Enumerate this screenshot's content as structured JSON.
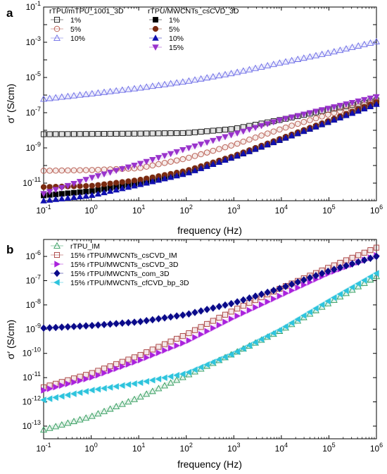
{
  "chart_data": [
    {
      "panel": "a",
      "type": "scatter",
      "xlabel": "frequency (Hz)",
      "ylabel": "σ′ (S/cm)",
      "x_scale": "log",
      "y_scale": "log",
      "xlim": [
        0.1,
        1000000
      ],
      "ylim": [
        1e-12,
        0.1
      ],
      "x_ticks": [
        {
          "v": 0.1,
          "base": "10",
          "exp": "-1"
        },
        {
          "v": 1,
          "base": "10",
          "exp": "0"
        },
        {
          "v": 10,
          "base": "10",
          "exp": "1"
        },
        {
          "v": 100,
          "base": "10",
          "exp": "2"
        },
        {
          "v": 1000,
          "base": "10",
          "exp": "3"
        },
        {
          "v": 10000,
          "base": "10",
          "exp": "4"
        },
        {
          "v": 100000,
          "base": "10",
          "exp": "5"
        },
        {
          "v": 1000000,
          "base": "10",
          "exp": "6"
        }
      ],
      "y_ticks": [
        {
          "v": 1e-11,
          "base": "10",
          "exp": "-11"
        },
        {
          "v": 1e-09,
          "base": "10",
          "exp": "-9"
        },
        {
          "v": 1e-07,
          "base": "10",
          "exp": "-7"
        },
        {
          "v": 1e-05,
          "base": "10",
          "exp": "-5"
        },
        {
          "v": 0.001,
          "base": "10",
          "exp": "-3"
        },
        {
          "v": 0.1,
          "base": "10",
          "exp": "-1"
        }
      ],
      "legend_groups": [
        {
          "title": "rTPU/mTPU_1001_3D",
          "entries": [
            "1%",
            "5%",
            "10%"
          ]
        },
        {
          "title": "rTPU/MWCNTs_csCVD_3D",
          "entries": [
            "1%",
            "5%",
            "10%",
            "15%"
          ]
        }
      ],
      "series": [
        {
          "name": "1%",
          "marker": "square-open",
          "color": "#111111",
          "points": [
            [
              0.1,
              6e-09
            ],
            [
              1,
              6.2e-09
            ],
            [
              10,
              6.5e-09
            ],
            [
              100,
              7e-09
            ],
            [
              1000,
              1.2e-08
            ],
            [
              10000,
              4e-08
            ],
            [
              100000,
              1.5e-07
            ],
            [
              1000000,
              5e-07
            ]
          ]
        },
        {
          "name": "5%",
          "marker": "circle-open",
          "color": "#b5574b",
          "points": [
            [
              0.1,
              5e-11
            ],
            [
              1,
              5.5e-11
            ],
            [
              10,
              7e-11
            ],
            [
              100,
              2.5e-10
            ],
            [
              1000,
              1.5e-09
            ],
            [
              10000,
              1.2e-08
            ],
            [
              100000,
              8e-08
            ],
            [
              1000000,
              4.5e-07
            ]
          ]
        },
        {
          "name": "10%",
          "marker": "triangle-open",
          "color": "#6a6ae6",
          "points": [
            [
              0.1,
              6e-07
            ],
            [
              1,
              1.2e-06
            ],
            [
              10,
              2.5e-06
            ],
            [
              100,
              6e-06
            ],
            [
              1000,
              1.8e-05
            ],
            [
              10000,
              7e-05
            ],
            [
              100000,
              0.00025
            ],
            [
              1000000,
              0.0011
            ]
          ]
        },
        {
          "name": "1%",
          "marker": "square-filled",
          "color": "#000000",
          "points": [
            [
              0.1,
              2e-12
            ],
            [
              1,
              3.5e-12
            ],
            [
              10,
              1e-11
            ],
            [
              100,
              4e-11
            ],
            [
              1000,
              3e-10
            ],
            [
              10000,
              3e-09
            ],
            [
              100000,
              3e-08
            ],
            [
              1000000,
              3.5e-07
            ]
          ]
        },
        {
          "name": "5%",
          "marker": "circle-filled",
          "color": "#7a2a10",
          "points": [
            [
              0.1,
              6e-12
            ],
            [
              1,
              7e-12
            ],
            [
              10,
              1.5e-11
            ],
            [
              100,
              5e-11
            ],
            [
              1000,
              3.5e-10
            ],
            [
              10000,
              3.5e-09
            ],
            [
              100000,
              3.5e-08
            ],
            [
              1000000,
              4e-07
            ]
          ]
        },
        {
          "name": "10%",
          "marker": "triangle-up-filled",
          "color": "#0f0fb0",
          "points": [
            [
              0.1,
              1e-12
            ],
            [
              1,
              2e-12
            ],
            [
              10,
              8e-12
            ],
            [
              100,
              3.5e-11
            ],
            [
              1000,
              3e-10
            ],
            [
              10000,
              3e-09
            ],
            [
              100000,
              3e-08
            ],
            [
              1000000,
              3e-07
            ]
          ]
        },
        {
          "name": "15%",
          "marker": "triangle-down-filled",
          "color": "#9933cc",
          "points": [
            [
              0.1,
              2.5e-12
            ],
            [
              1,
              2e-11
            ],
            [
              10,
              1.2e-10
            ],
            [
              100,
              9e-10
            ],
            [
              1000,
              6e-09
            ],
            [
              10000,
              4e-08
            ],
            [
              100000,
              1.8e-07
            ],
            [
              1000000,
              8e-07
            ]
          ]
        }
      ]
    },
    {
      "panel": "b",
      "type": "scatter",
      "xlabel": "frequency (Hz)",
      "ylabel": "σ′ (S/cm)",
      "x_scale": "log",
      "y_scale": "log",
      "xlim": [
        0.1,
        1000000
      ],
      "ylim": [
        3e-14,
        5e-06
      ],
      "x_ticks": [
        {
          "v": 0.1,
          "base": "10",
          "exp": "-1"
        },
        {
          "v": 1,
          "base": "10",
          "exp": "0"
        },
        {
          "v": 10,
          "base": "10",
          "exp": "1"
        },
        {
          "v": 100,
          "base": "10",
          "exp": "2"
        },
        {
          "v": 1000,
          "base": "10",
          "exp": "3"
        },
        {
          "v": 10000,
          "base": "10",
          "exp": "4"
        },
        {
          "v": 100000,
          "base": "10",
          "exp": "5"
        },
        {
          "v": 1000000,
          "base": "10",
          "exp": "6"
        }
      ],
      "y_ticks": [
        {
          "v": 1e-13,
          "base": "10",
          "exp": "-13"
        },
        {
          "v": 1e-12,
          "base": "10",
          "exp": "-12"
        },
        {
          "v": 1e-11,
          "base": "10",
          "exp": "-11"
        },
        {
          "v": 1e-10,
          "base": "10",
          "exp": "-10"
        },
        {
          "v": 1e-09,
          "base": "10",
          "exp": "-9"
        },
        {
          "v": 1e-08,
          "base": "10",
          "exp": "-8"
        },
        {
          "v": 1e-07,
          "base": "10",
          "exp": "-7"
        },
        {
          "v": 1e-06,
          "base": "10",
          "exp": "-6"
        }
      ],
      "series": [
        {
          "name": "rTPU_IM",
          "marker": "triangle-open",
          "color": "#2e9a5a",
          "points": [
            [
              0.1,
              7e-14
            ],
            [
              1,
              2.5e-13
            ],
            [
              10,
              1.5e-12
            ],
            [
              100,
              1.2e-11
            ],
            [
              1000,
              1e-10
            ],
            [
              10000,
              9e-10
            ],
            [
              100000,
              1.2e-08
            ],
            [
              1000000,
              1.5e-07
            ]
          ]
        },
        {
          "name": "15% rTPU/MWCNTs_csCVD_IM",
          "marker": "square-open",
          "color": "#a63a3a",
          "points": [
            [
              0.1,
              4e-12
            ],
            [
              1,
              1.5e-11
            ],
            [
              10,
              8e-11
            ],
            [
              100,
              6e-10
            ],
            [
              1000,
              6e-09
            ],
            [
              10000,
              5e-08
            ],
            [
              100000,
              3.5e-07
            ],
            [
              1000000,
              2.3e-06
            ]
          ]
        },
        {
          "name": "15% rTPU/MWCNTs_csCVD_3D",
          "marker": "triangle-right-filled",
          "color": "#aa22dd",
          "points": [
            [
              0.1,
              3e-12
            ],
            [
              1,
              1e-11
            ],
            [
              10,
              5e-11
            ],
            [
              100,
              3e-10
            ],
            [
              1000,
              3e-09
            ],
            [
              10000,
              2.5e-08
            ],
            [
              100000,
              2e-07
            ],
            [
              1000000,
              1.1e-06
            ]
          ]
        },
        {
          "name": "15% rTPU/MWCNTs_com_3D",
          "marker": "diamond-filled",
          "color": "#0a0a8a",
          "points": [
            [
              0.1,
              1.1e-09
            ],
            [
              1,
              1.4e-09
            ],
            [
              10,
              2e-09
            ],
            [
              100,
              4e-09
            ],
            [
              1000,
              1.2e-08
            ],
            [
              10000,
              5e-08
            ],
            [
              100000,
              2.5e-07
            ],
            [
              1000000,
              1e-06
            ]
          ]
        },
        {
          "name": "15% rTPU/MWCNTs_cfCVD_bp_3D",
          "marker": "triangle-left-filled",
          "color": "#2ec4dd",
          "points": [
            [
              0.1,
              1.2e-12
            ],
            [
              1,
              3e-12
            ],
            [
              10,
              6e-12
            ],
            [
              100,
              1.5e-11
            ],
            [
              1000,
              1e-10
            ],
            [
              10000,
              1e-09
            ],
            [
              100000,
              1.5e-08
            ],
            [
              1000000,
              2e-07
            ]
          ]
        }
      ]
    }
  ]
}
